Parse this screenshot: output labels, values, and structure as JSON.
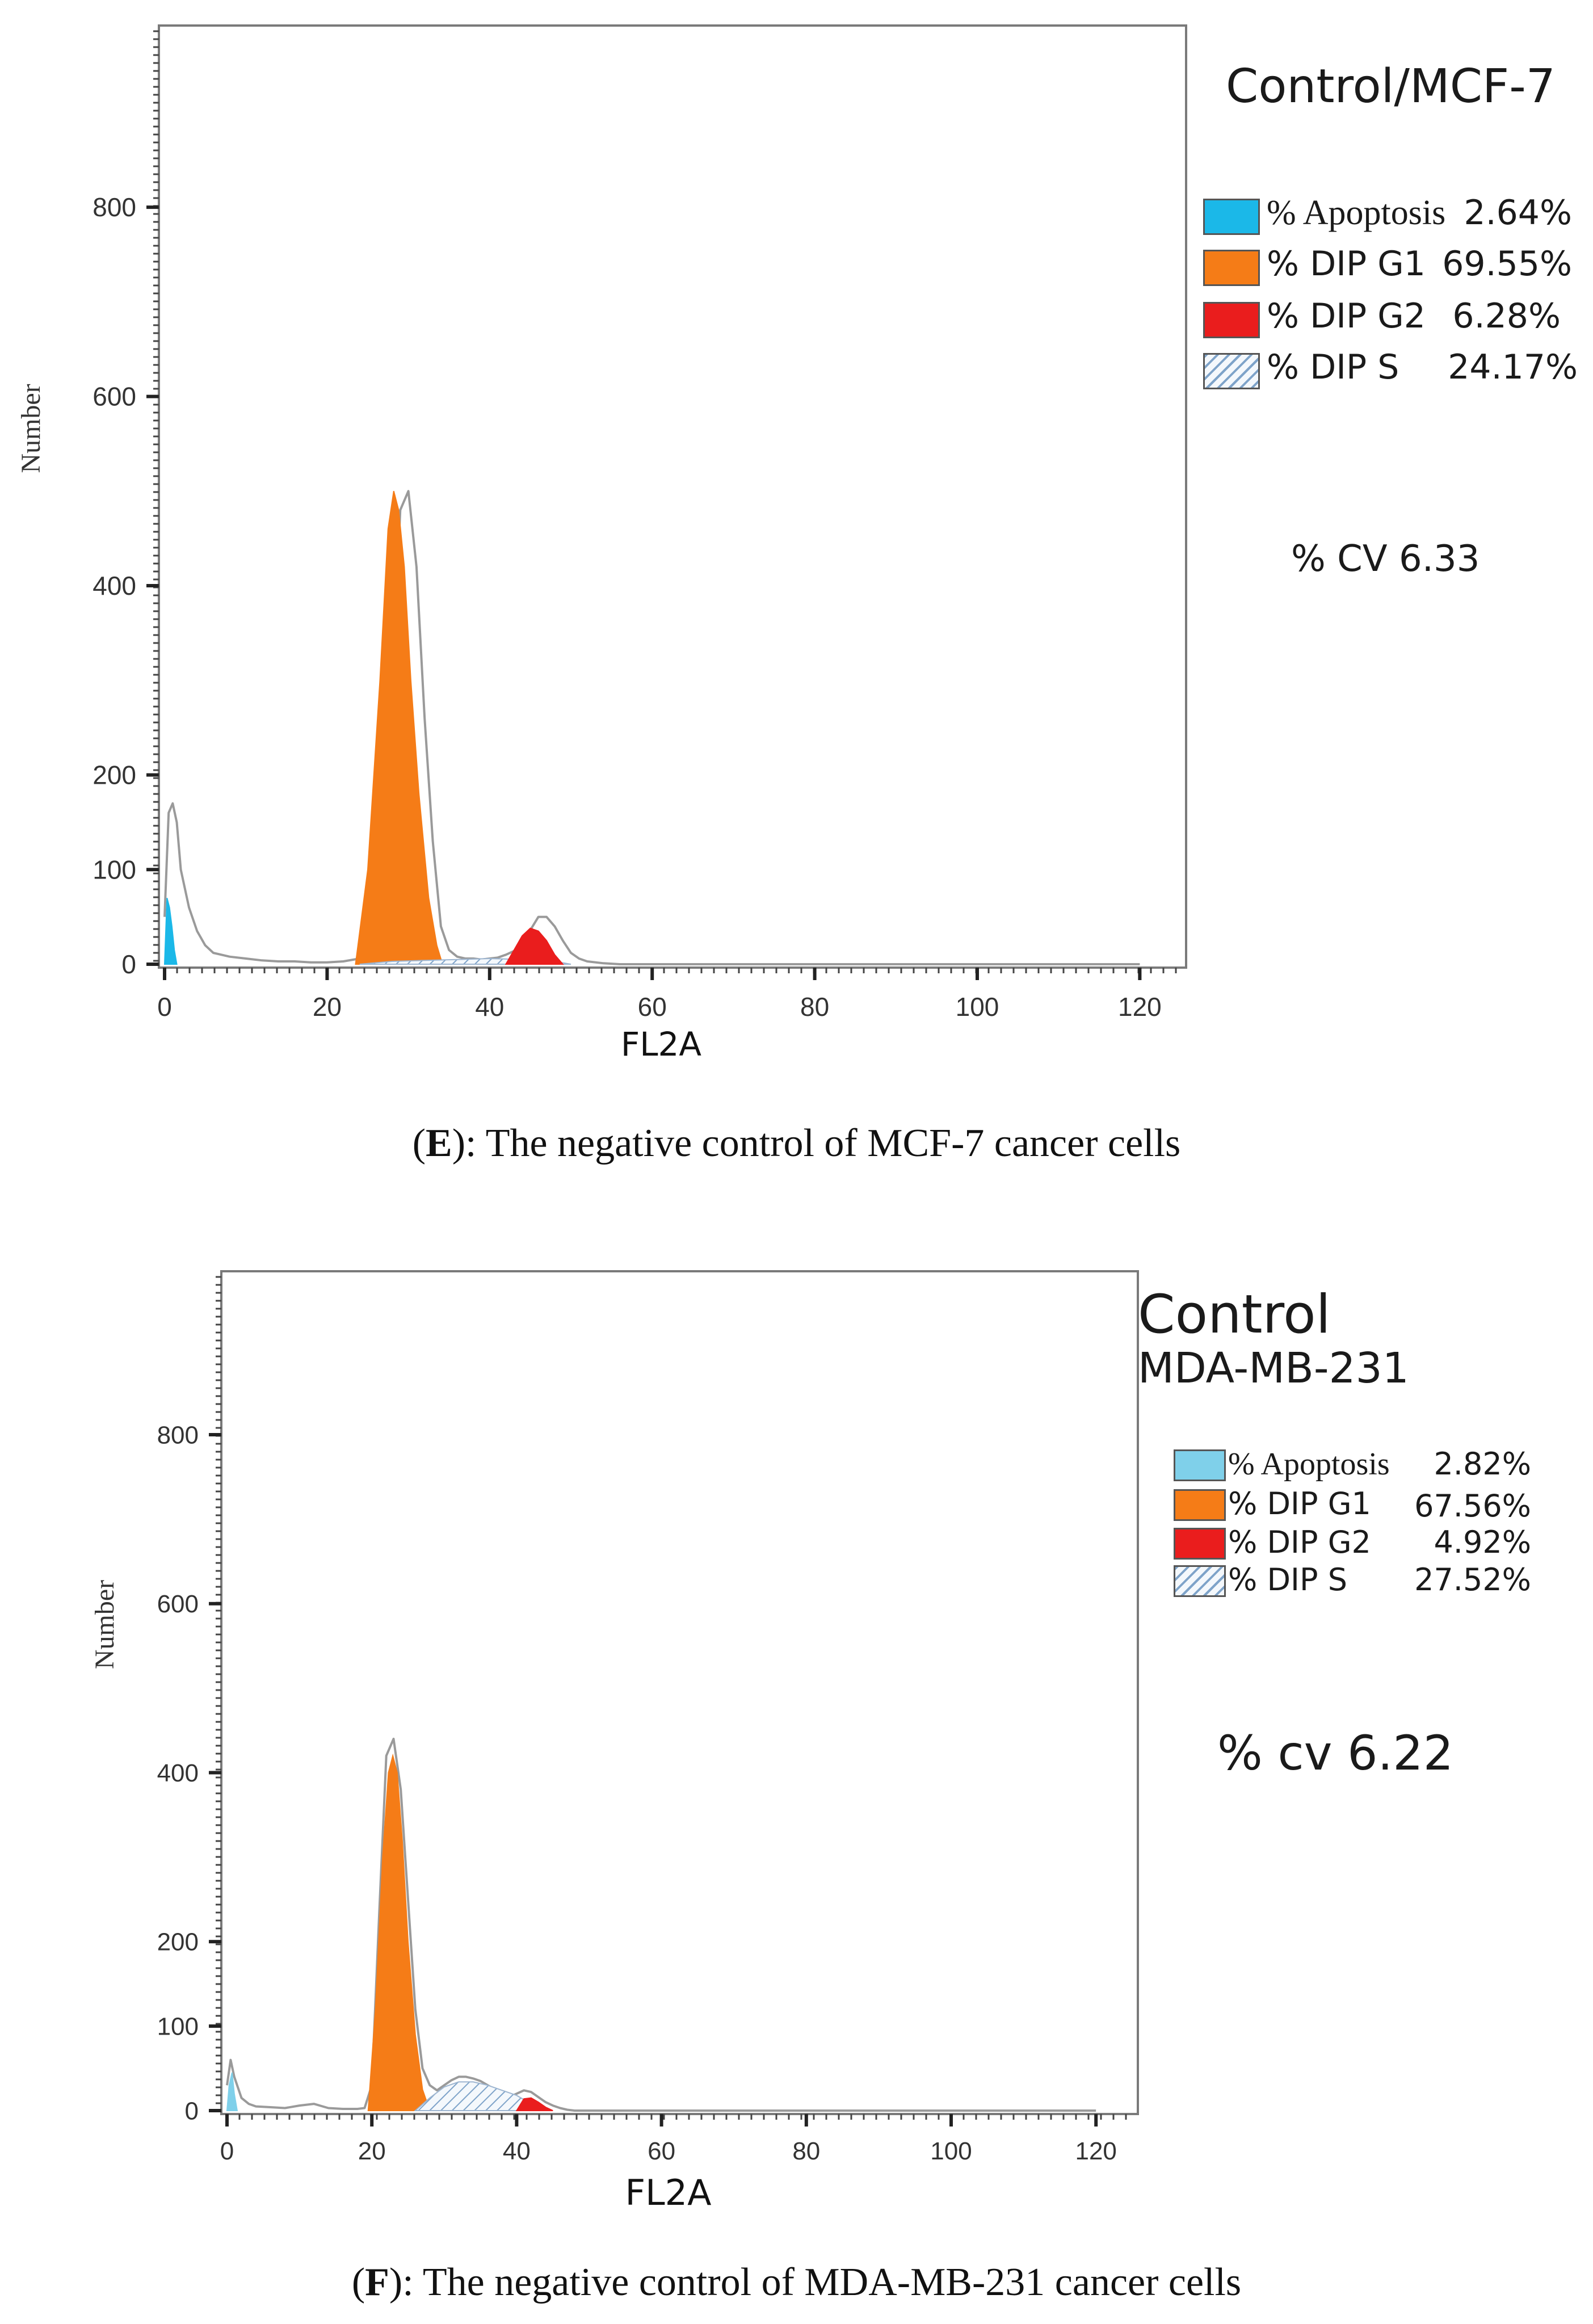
{
  "chart_data": [
    {
      "type": "area",
      "panel_label": "E",
      "caption": "The negative control of MCF-7 cancer cells",
      "title": "Control/MCF-7",
      "xlabel": "FL2A",
      "ylabel": "Number",
      "xlim": [
        0,
        125
      ],
      "ylim": [
        0,
        980
      ],
      "x_ticks": [
        0,
        20,
        40,
        60,
        80,
        100,
        120
      ],
      "y_ticks": [
        0,
        100,
        200,
        400,
        600,
        800
      ],
      "y_tick_labels": [
        "0",
        "100",
        "200",
        "400",
        "600",
        "800"
      ],
      "legend": [
        {
          "label": "% Apoptosis",
          "value": "2.64%",
          "color": "#1bb8e8",
          "pattern": "solid"
        },
        {
          "label": "% DIP G1",
          "value": "69.55%",
          "color": "#f57c17",
          "pattern": "solid"
        },
        {
          "label": "% DIP G2",
          "value": "6.28%",
          "color": "#ea1d1d",
          "pattern": "solid"
        },
        {
          "label": "% DIP S",
          "value": "24.17%",
          "color": "#7ea3c9",
          "pattern": "hatched"
        }
      ],
      "cv_text": "% CV 6.33",
      "series": [
        {
          "name": "Histogram",
          "role": "outline",
          "color": "#9a9a9a",
          "x": [
            0,
            0.5,
            1,
            1.5,
            2,
            3,
            4,
            5,
            6,
            8,
            10,
            12,
            14,
            16,
            18,
            20,
            22,
            24,
            26,
            28,
            29,
            30,
            31,
            32,
            33,
            34,
            35,
            36,
            37,
            38,
            39,
            40,
            41,
            42,
            43,
            44,
            45,
            46,
            47,
            48,
            49,
            50,
            51,
            52,
            54,
            56,
            58,
            60,
            65,
            70,
            80,
            90,
            100,
            110,
            120
          ],
          "y": [
            50,
            160,
            170,
            150,
            100,
            60,
            35,
            20,
            12,
            8,
            6,
            4,
            3,
            3,
            2,
            2,
            3,
            6,
            30,
            300,
            480,
            500,
            420,
            260,
            130,
            40,
            15,
            8,
            6,
            6,
            5,
            6,
            7,
            10,
            14,
            22,
            36,
            50,
            50,
            40,
            25,
            12,
            6,
            3,
            1,
            0,
            0,
            0,
            0,
            0,
            0,
            0,
            0,
            0,
            0
          ]
        },
        {
          "name": "Apoptosis",
          "color": "#1bb8e8",
          "x": [
            0,
            0.3,
            0.6,
            0.9,
            1.2,
            1.5
          ],
          "y": [
            0,
            70,
            60,
            40,
            15,
            0
          ]
        },
        {
          "name": "DIP G1",
          "color": "#f57c17",
          "x": [
            23.5,
            25,
            26.5,
            27.5,
            28.2,
            28.8,
            29.5,
            30.3,
            31.3,
            32.5,
            33.5,
            34.2
          ],
          "y": [
            0,
            100,
            300,
            460,
            500,
            480,
            420,
            300,
            180,
            70,
            20,
            0
          ]
        },
        {
          "name": "DIP S",
          "color": "#7ea3c9",
          "pattern": "hatched",
          "x": [
            24,
            28,
            32,
            36,
            40,
            44,
            48,
            50
          ],
          "y": [
            0,
            3,
            4,
            5,
            6,
            5,
            3,
            0
          ]
        },
        {
          "name": "DIP G2",
          "color": "#ea1d1d",
          "x": [
            42,
            43,
            44,
            45,
            46,
            47,
            48,
            49
          ],
          "y": [
            0,
            15,
            30,
            38,
            35,
            25,
            10,
            0
          ]
        }
      ]
    },
    {
      "type": "area",
      "panel_label": "F",
      "caption": "The negative control of MDA-MB-231 cancer cells",
      "title": "Control",
      "subtitle": "MDA-MB-231",
      "xlabel": "FL2A",
      "ylabel": "Number",
      "xlim": [
        0,
        125
      ],
      "ylim": [
        0,
        980
      ],
      "x_ticks": [
        0,
        20,
        40,
        60,
        80,
        100,
        120
      ],
      "y_ticks": [
        0,
        100,
        200,
        400,
        600,
        800
      ],
      "y_tick_labels": [
        "0",
        "100",
        "200",
        "400",
        "600",
        "800"
      ],
      "legend": [
        {
          "label": "% Apoptosis",
          "value": "2.82%",
          "color": "#7fd0ea",
          "pattern": "solid"
        },
        {
          "label": "% DIP G1",
          "value": "67.56%",
          "color": "#f57c17",
          "pattern": "solid"
        },
        {
          "label": "% DIP G2",
          "value": "4.92%",
          "color": "#ea1d1d",
          "pattern": "solid"
        },
        {
          "label": "% DIP S",
          "value": "27.52%",
          "color": "#7ea3c9",
          "pattern": "hatched"
        }
      ],
      "cv_text": "% cv 6.22",
      "series": [
        {
          "name": "Histogram",
          "role": "outline",
          "color": "#9a9a9a",
          "x": [
            0,
            0.5,
            1,
            2,
            3,
            4,
            6,
            8,
            10,
            12,
            14,
            16,
            18,
            19,
            20,
            21,
            22,
            23,
            24,
            25,
            26,
            27,
            28,
            29,
            30,
            31,
            32,
            33,
            34,
            35,
            36,
            37,
            38,
            39,
            40,
            41,
            42,
            43,
            44,
            45,
            46,
            47,
            48,
            50,
            55,
            60,
            70,
            80,
            90,
            100,
            110,
            120
          ],
          "y": [
            30,
            60,
            40,
            15,
            8,
            5,
            4,
            3,
            6,
            8,
            3,
            2,
            2,
            3,
            30,
            230,
            420,
            440,
            380,
            250,
            120,
            50,
            30,
            24,
            30,
            36,
            40,
            40,
            38,
            35,
            30,
            25,
            20,
            16,
            20,
            24,
            22,
            16,
            10,
            6,
            3,
            1,
            0,
            0,
            0,
            0,
            0,
            0,
            0,
            0,
            0,
            0
          ]
        },
        {
          "name": "Apoptosis",
          "color": "#7fd0ea",
          "x": [
            0,
            0.3,
            0.7,
            1,
            1.4
          ],
          "y": [
            0,
            30,
            45,
            20,
            0
          ]
        },
        {
          "name": "DIP G1",
          "color": "#f57c17",
          "x": [
            19.5,
            20.5,
            21.5,
            22.3,
            22.9,
            23.5,
            24.2,
            25,
            26,
            27,
            28
          ],
          "y": [
            0,
            120,
            300,
            400,
            420,
            400,
            320,
            200,
            90,
            25,
            0
          ]
        },
        {
          "name": "DIP S",
          "color": "#7ea3c9",
          "pattern": "hatched",
          "x": [
            26,
            28,
            30,
            32,
            34,
            36,
            38,
            40,
            42,
            44
          ],
          "y": [
            0,
            15,
            28,
            34,
            34,
            30,
            24,
            18,
            8,
            0
          ]
        },
        {
          "name": "DIP G2",
          "color": "#ea1d1d",
          "x": [
            40,
            41,
            42,
            43,
            44,
            45
          ],
          "y": [
            0,
            14,
            15,
            10,
            4,
            0
          ]
        }
      ]
    }
  ]
}
